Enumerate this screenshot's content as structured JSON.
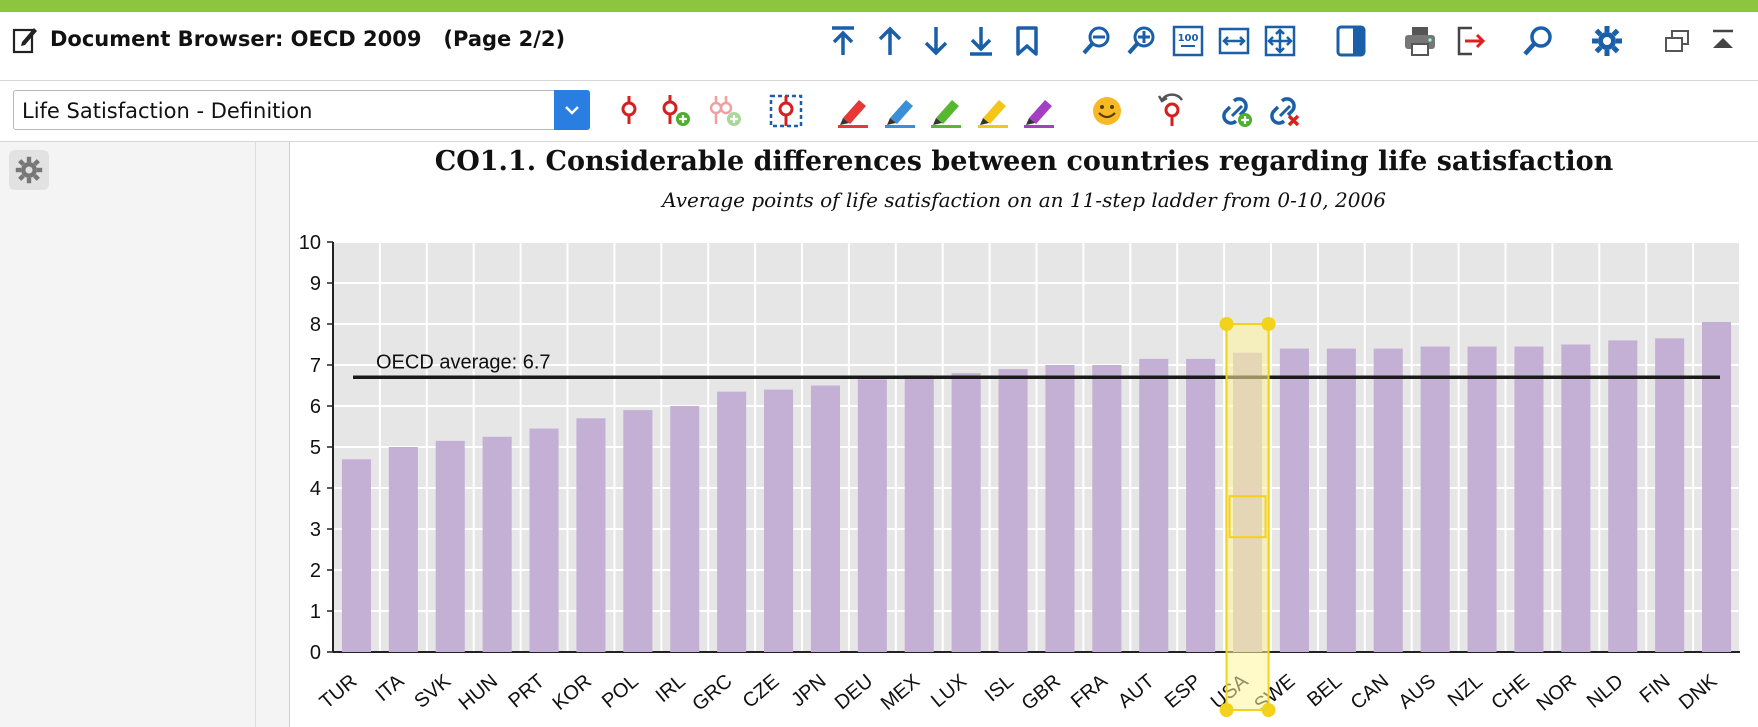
{
  "window": {
    "title": "Document Browser: OECD 2009   (Page 2/2)"
  },
  "toolbar": {
    "icons": [
      "go-first-icon",
      "go-up-icon",
      "go-down-icon",
      "go-last-icon",
      "bookmark-icon",
      "zoom-out-icon",
      "zoom-in-icon",
      "zoom-100-icon",
      "fit-width-icon",
      "fit-page-icon",
      "sidebar-toggle-icon",
      "print-icon",
      "export-icon",
      "search-icon",
      "settings-icon",
      "undock-icon",
      "collapse-icon"
    ]
  },
  "code_toolbar": {
    "selected_code": "Life Satisfaction - Definition",
    "icons": [
      "code-icon",
      "code-add-icon",
      "code-add-disabled-icon",
      "area-select-icon",
      "highlight-red-icon",
      "highlight-blue-icon",
      "highlight-green-icon",
      "highlight-yellow-icon",
      "highlight-purple-icon",
      "emoticon-icon",
      "recode-icon",
      "link-add-icon",
      "link-remove-icon"
    ]
  },
  "colors": {
    "accent": "#8cc63f",
    "icon_blue": "#1a5fa8",
    "bar": "#c5b0d5",
    "plot_bg": "#e6e6e7",
    "selection": "#fff59a",
    "selection_border": "#f2d21a"
  },
  "chart_data": {
    "type": "bar",
    "title": "CO1.1.  Considerable differences between countries regarding life satisfaction",
    "subtitle": "Average points of life satisfaction on an 11-step ladder from 0-10, 2006",
    "categories": [
      "TUR",
      "ITA",
      "SVK",
      "HUN",
      "PRT",
      "KOR",
      "POL",
      "IRL",
      "GRC",
      "CZE",
      "JPN",
      "DEU",
      "MEX",
      "LUX",
      "ISL",
      "GBR",
      "FRA",
      "AUT",
      "ESP",
      "USA",
      "SWE",
      "BEL",
      "CAN",
      "AUS",
      "NZL",
      "CHE",
      "NOR",
      "NLD",
      "FIN",
      "DNK"
    ],
    "values": [
      4.7,
      5.0,
      5.15,
      5.25,
      5.45,
      5.7,
      5.9,
      6.0,
      6.35,
      6.4,
      6.5,
      6.65,
      6.75,
      6.8,
      6.9,
      7.0,
      7.0,
      7.15,
      7.15,
      7.3,
      7.4,
      7.4,
      7.4,
      7.45,
      7.45,
      7.45,
      7.5,
      7.6,
      7.65,
      8.05
    ],
    "ylim": [
      0,
      10
    ],
    "yticks": [
      0,
      1,
      2,
      3,
      4,
      5,
      6,
      7,
      8,
      9,
      10
    ],
    "grid": true,
    "reference_line": {
      "value": 6.7,
      "label": "OECD average: 6.7"
    },
    "highlighted_category": "USA"
  }
}
